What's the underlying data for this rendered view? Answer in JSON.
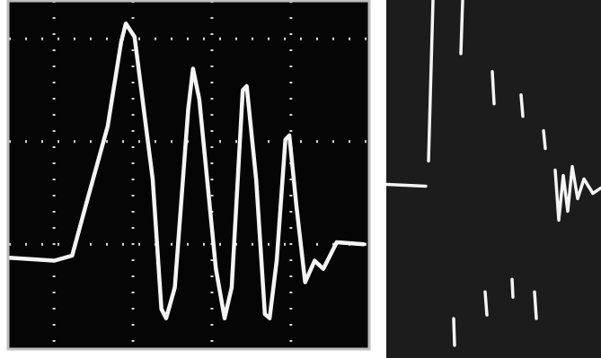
{
  "chart_data": [
    {
      "type": "line",
      "grid": true,
      "tick_labels": false,
      "color": "#f4f4f4",
      "xlim": [
        -0.57,
        3.98
      ],
      "ylim": [
        -1.02,
        2.37
      ],
      "xticks": [
        0,
        1,
        2,
        3
      ],
      "yticks": [
        0,
        1,
        2
      ],
      "x": [
        -0.57,
        0,
        0.23,
        0.4,
        0.68,
        0.85,
        0.91,
        1.02,
        1.25,
        1.36,
        1.42,
        1.53,
        1.7,
        1.76,
        1.84,
        2.05,
        2.16,
        2.25,
        2.39,
        2.44,
        2.56,
        2.67,
        2.73,
        2.82,
        2.93,
        2.98,
        3.07,
        3.18,
        3.3,
        3.41,
        3.58,
        3.92
      ],
      "values": [
        -0.13,
        -0.16,
        -0.11,
        0.37,
        1.15,
        1.97,
        2.15,
        2.02,
        0.63,
        -0.63,
        -0.72,
        -0.42,
        1.32,
        1.71,
        1.41,
        -0.24,
        -0.72,
        -0.42,
        1.5,
        1.54,
        0.63,
        -0.68,
        -0.72,
        -0.16,
        1.02,
        1.06,
        0.37,
        -0.37,
        -0.16,
        -0.24,
        0.02,
        0
      ]
    },
    {
      "type": "line",
      "grid": false,
      "tick_labels": false,
      "color": "#f4f4f4",
      "xlim": [
        0,
        239
      ],
      "ylim": [
        -0.97,
        1.03
      ],
      "x": [
        0,
        44,
        45,
        47,
        52,
        60,
        85,
        83,
        80,
        75,
        76,
        78,
        118,
        120,
        121,
        110,
        112,
        114,
        150,
        152,
        153,
        140,
        141,
        143,
        175,
        177,
        178,
        165,
        167,
        170,
        188,
        192,
        197,
        202,
        207,
        213,
        220,
        230,
        239
      ],
      "values": [
        0,
        -0.01,
        null,
        0.13,
        1.03,
        null,
        1.03,
        0.73,
        null,
        -0.75,
        -0.9,
        null,
        0.63,
        0.45,
        null,
        -0.6,
        -0.73,
        null,
        0.5,
        0.38,
        null,
        -0.53,
        -0.63,
        null,
        0.3,
        0.2,
        null,
        -0.6,
        -0.75,
        null,
        0.08,
        -0.2,
        0.05,
        -0.15,
        0.1,
        -0.08,
        0.03,
        -0.05,
        -0.02
      ]
    }
  ]
}
